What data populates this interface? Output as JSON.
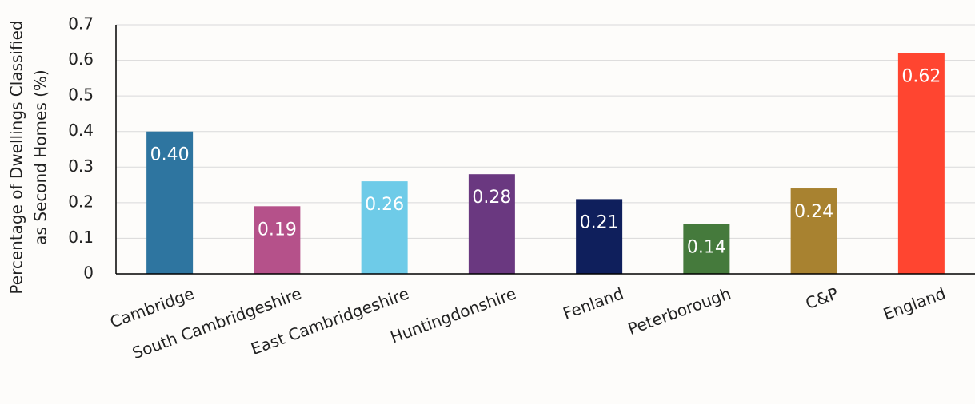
{
  "chart_data": {
    "type": "bar",
    "ylabel": [
      "Percentage of Dwellings Classified",
      "as Second Homes (%)"
    ],
    "categories": [
      "Cambridge",
      "South Cambridgeshire",
      "East Cambridgeshire",
      "Huntingdonshire",
      "Fenland",
      "Peterborough",
      "C&P",
      "England"
    ],
    "values": [
      0.4,
      0.19,
      0.26,
      0.28,
      0.21,
      0.14,
      0.24,
      0.62
    ],
    "value_labels": [
      "0.40",
      "0.19",
      "0.26",
      "0.28",
      "0.21",
      "0.14",
      "0.24",
      "0.62"
    ],
    "colors": [
      "#2e75a0",
      "#b5518a",
      "#6ecbe8",
      "#6a3880",
      "#0f1f5c",
      "#457a3c",
      "#a88230",
      "#ff4530"
    ],
    "ylim": [
      0,
      0.7
    ],
    "yticks": [
      0,
      0.1,
      0.2,
      0.3,
      0.4,
      0.5,
      0.6,
      0.7
    ],
    "grid": true
  }
}
